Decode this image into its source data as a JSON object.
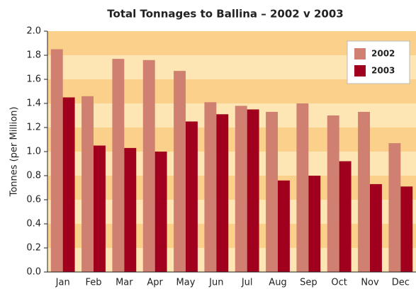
{
  "chart_data": {
    "type": "bar",
    "title": "Total Tonnages to Ballina – 2002 v 2003",
    "y_label": "Tonnes (per Million)",
    "categories": [
      "Jan",
      "Feb",
      "Mar",
      "Apr",
      "May",
      "Jun",
      "Jul",
      "Aug",
      "Sep",
      "Oct",
      "Nov",
      "Dec"
    ],
    "series": [
      {
        "name": "2002",
        "color": "#d08070",
        "values": [
          1.85,
          1.46,
          1.77,
          1.76,
          1.67,
          1.41,
          1.38,
          1.33,
          1.4,
          1.3,
          1.33,
          1.07
        ]
      },
      {
        "name": "2003",
        "color": "#a0001e",
        "values": [
          1.45,
          1.05,
          1.03,
          1.0,
          1.25,
          1.31,
          1.35,
          0.76,
          0.8,
          0.92,
          0.73,
          0.71
        ]
      }
    ],
    "ylim": [
      0,
      2
    ],
    "yticks": [
      {
        "value": 0,
        "label": "0.0"
      },
      0.2,
      0.4,
      0.6,
      0.8,
      {
        "value": 1,
        "label": "1.0"
      },
      1.2,
      1.4,
      1.6,
      1.8,
      {
        "value": 2,
        "label": "2.0"
      }
    ],
    "grid": true,
    "legend": "upper right"
  }
}
